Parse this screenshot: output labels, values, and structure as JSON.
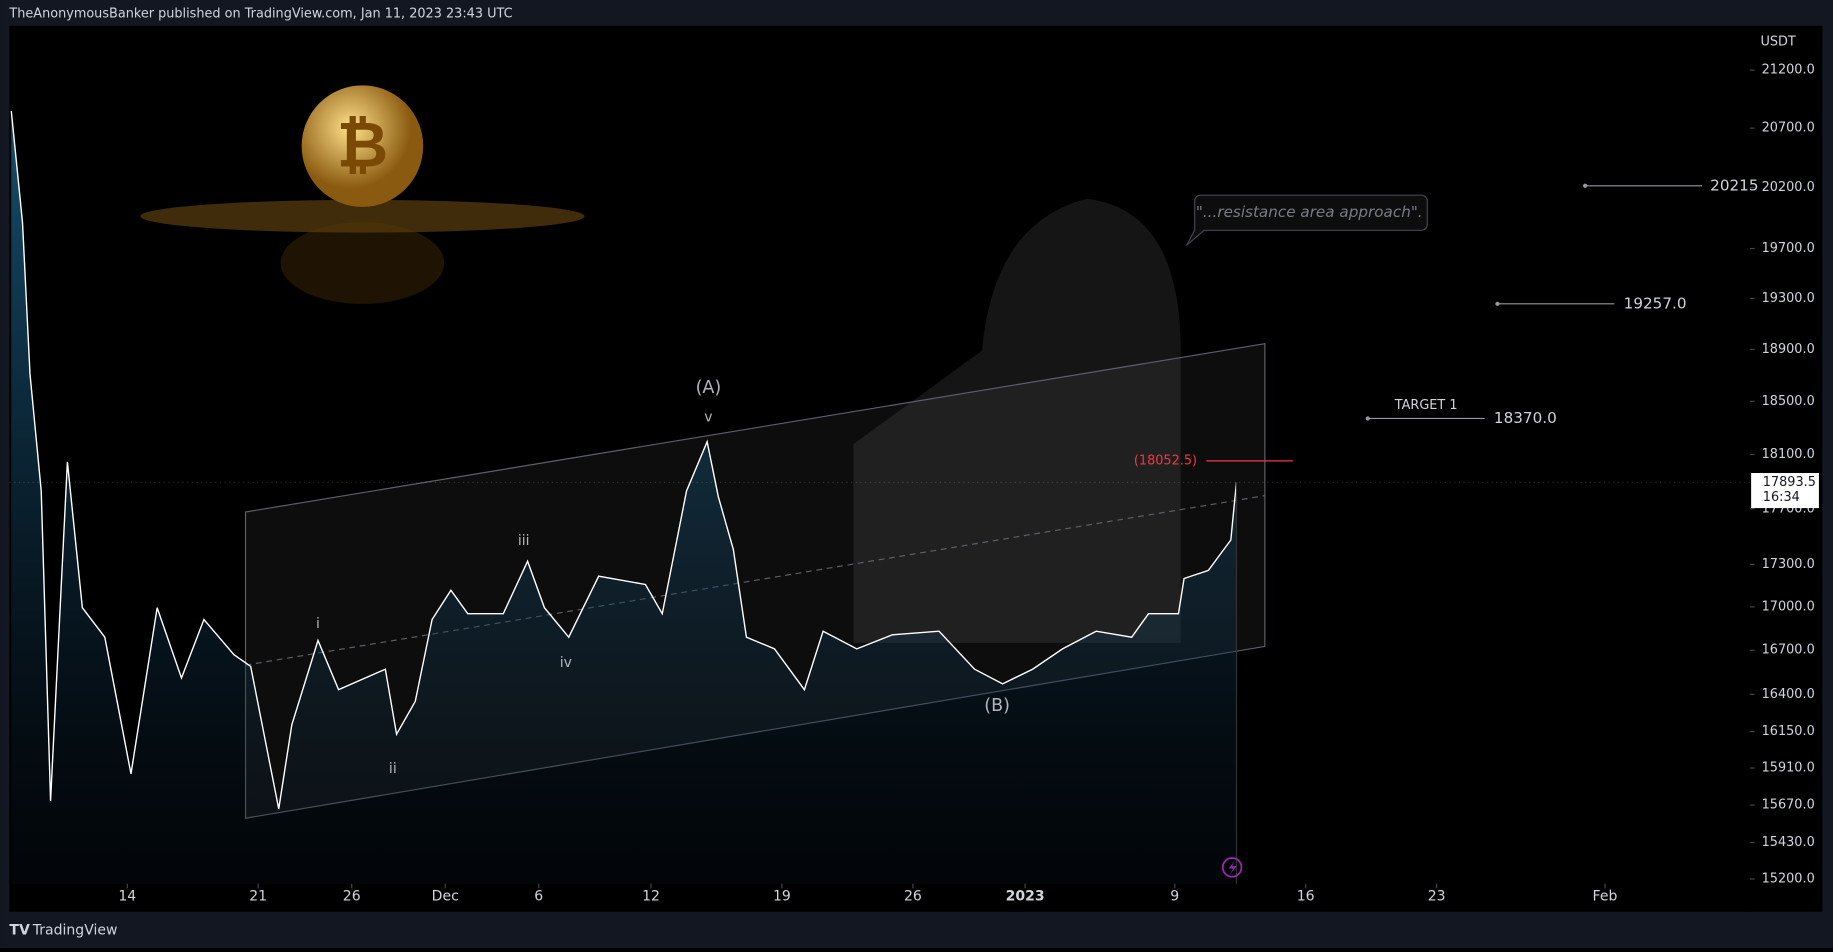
{
  "header": "TheAnonymousBanker published on TradingView.com, Jan 11, 2023 23:43 UTC",
  "footer": "TradingView",
  "chart_data": {
    "type": "line",
    "currency": "USDT",
    "log_scale": true,
    "grid": false,
    "x": [
      7.8,
      8.4,
      8.8,
      9.4,
      9.9,
      10.8,
      11.6,
      12.8,
      14.2,
      15.6,
      16.9,
      18.1,
      19.7,
      20.6,
      22.1,
      22.8,
      24.2,
      25.3,
      27.8,
      28.4,
      29.4,
      30.3,
      31.3,
      32.2,
      34.1,
      35.4,
      36.3,
      37.6,
      39.2,
      41.7,
      42.6,
      43.9,
      45.0,
      45.6,
      46.4,
      47.1,
      48.6,
      50.2,
      51.2,
      53.0,
      54.9,
      57.4,
      59.3,
      60.8,
      62.4,
      64.0,
      65.8,
      67.7,
      68.6,
      70.2,
      70.5,
      71.8,
      72.4,
      73.0,
      73.3
    ],
    "series": [
      {
        "name": "BTCUSDT",
        "color": "#ffffff",
        "values": [
          20847,
          19912,
          18710,
          17831,
          15697,
          18045,
          16994,
          16790,
          15872,
          16994,
          16510,
          16912,
          16670,
          16589,
          15645,
          16196,
          16767,
          16431,
          16570,
          16133,
          16352,
          16912,
          17117,
          16953,
          16953,
          17323,
          16994,
          16790,
          17216,
          17158,
          16953,
          17831,
          18195,
          17787,
          17407,
          16790,
          16709,
          16431,
          16831,
          16709,
          16806,
          16831,
          16570,
          16471,
          16570,
          16709,
          16831,
          16790,
          16953,
          16953,
          17200,
          17257,
          17366,
          17474,
          17893.5
        ]
      }
    ],
    "xlim": [
      7.7,
      100.75
    ],
    "xticks": [
      14,
      21,
      26,
      {
        "value": 31,
        "label": "Dec"
      },
      {
        "value": 36,
        "label": "6"
      },
      {
        "value": 42,
        "label": "12"
      },
      {
        "value": 49,
        "label": "19"
      },
      {
        "value": 56,
        "label": "26"
      },
      {
        "value": 62,
        "label": "2023"
      },
      {
        "value": 70,
        "label": "9"
      },
      {
        "value": 77,
        "label": "16"
      },
      {
        "value": 84,
        "label": "23"
      },
      {
        "value": 93,
        "label": "Feb"
      }
    ],
    "ylim": [
      15200,
      21700
    ],
    "yticks": [
      {
        "value": 15200,
        "label": "15200.0"
      },
      {
        "value": 15430,
        "label": "15430.0"
      },
      {
        "value": 15670,
        "label": "15670.0"
      },
      {
        "value": 15910,
        "label": "15910.0"
      },
      {
        "value": 16150,
        "label": "16150.0"
      },
      {
        "value": 16400,
        "label": "16400.0"
      },
      {
        "value": 16700,
        "label": "16700.0"
      },
      {
        "value": 17000,
        "label": "17000.0"
      },
      {
        "value": 17300,
        "label": "17300.0"
      },
      {
        "value": 17700,
        "label": "17700.0"
      },
      {
        "value": 18100,
        "label": "18100.0"
      },
      {
        "value": 18500,
        "label": "18500.0"
      },
      {
        "value": 18900,
        "label": "18900.0"
      },
      {
        "value": 19300,
        "label": "19300.0"
      },
      {
        "value": 19700,
        "label": "19700.0"
      },
      {
        "value": 20200,
        "label": "20200.0"
      },
      {
        "value": 20700,
        "label": "20700.0"
      },
      {
        "value": 21200,
        "label": "21200.0"
      }
    ],
    "last_price": 17893.5,
    "countdown": "16:34",
    "levels": [
      {
        "value": 20215,
        "label": "20215"
      },
      {
        "value": 19257,
        "label": "19257.0"
      },
      {
        "value": 18370,
        "label": "18370.0",
        "name": "TARGET 1"
      },
      {
        "value": 18052.5,
        "label": "(18052.5)",
        "color": "#f23645"
      }
    ],
    "wave_labels": [
      "(A)",
      "v",
      "iii",
      "i",
      "ii",
      "iv",
      "(B)"
    ],
    "callout": "\"...resistance area approach\"."
  }
}
